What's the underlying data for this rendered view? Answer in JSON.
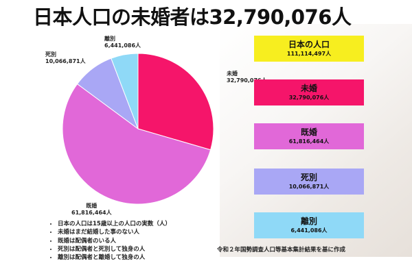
{
  "title": "日本人口の未婚者は32,790,076人",
  "chart_data": {
    "type": "pie",
    "slices": [
      {
        "name": "未婚",
        "label": "未婚",
        "value_label": "32,790,076人",
        "value": 32790076,
        "color": "#f5156a"
      },
      {
        "name": "既婚",
        "label": "既婚",
        "value_label": "61,816,464人",
        "value": 61816464,
        "color": "#e168d8"
      },
      {
        "name": "死別",
        "label": "死別",
        "value_label": "10,066,871人",
        "value": 10066871,
        "color": "#a9a7f5"
      },
      {
        "name": "離別",
        "label": "離別",
        "value_label": "6,441,086人",
        "value": 6441086,
        "color": "#8fd9f7"
      }
    ],
    "start": "12 o'clock",
    "direction": "clockwise"
  },
  "boxes": [
    {
      "name": "日本の人口",
      "value": "111,114,497人",
      "color": "#f7ee1f"
    },
    {
      "name": "未婚",
      "value": "32,790,076人",
      "color": "#f5156a"
    },
    {
      "name": "既婚",
      "value": "61,816,464人",
      "color": "#e168d8"
    },
    {
      "name": "死別",
      "value": "10,066,871人",
      "color": "#a9a7f5"
    },
    {
      "name": "離別",
      "value": "6,441,086人",
      "color": "#8fd9f7"
    }
  ],
  "notes": [
    "日本の人口は15歳以上の人口の実数（人）",
    "未婚はまだ結婚した事のない人",
    "既婚は配偶者のいる人",
    "死別は配偶者と死別して独身の人",
    "離別は配偶者と離婚して独身の人"
  ],
  "source": "令和２年国勢調査人口等基本集計結果を基に作成"
}
